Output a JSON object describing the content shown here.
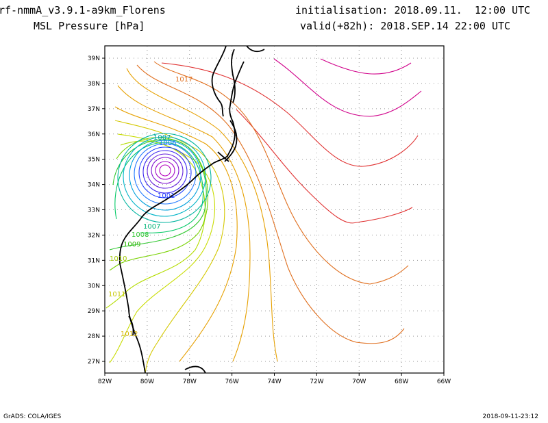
{
  "header": {
    "model_title": "rf-nmmA_v3.9.1-a9km_Florens",
    "field_title": "MSL Pressure [hPa]",
    "init_line": "initialisation: 2018.09.11.  12:00 UTC",
    "valid_line": "valid(+82h): 2018.SEP.14 22:00 UTC"
  },
  "footer": {
    "left": "GrADS: COLA/IGES",
    "right": "2018-09-11-23:12"
  },
  "map": {
    "lat_ticks": [
      "27N",
      "28N",
      "29N",
      "30N",
      "31N",
      "32N",
      "33N",
      "34N",
      "35N",
      "36N",
      "37N",
      "38N",
      "39N"
    ],
    "lon_ticks": [
      "82W",
      "80W",
      "78W",
      "76W",
      "74W",
      "72W",
      "70W",
      "68W",
      "66W"
    ],
    "grid": true,
    "contour_labels": [
      "1017",
      "1007",
      "1006",
      "1001",
      "1007",
      "1008",
      "1009",
      "1010",
      "1011",
      "1012"
    ],
    "colors": {
      "low_core": "#a000c8",
      "blue": "#1e3cff",
      "cyan": "#00b4c8",
      "green": "#00c800",
      "yellow": "#c8dc00",
      "orange": "#e6a000",
      "dark_orange": "#e07020",
      "red": "#e03030",
      "magenta": "#d0008a",
      "coastline": "#000000"
    }
  }
}
